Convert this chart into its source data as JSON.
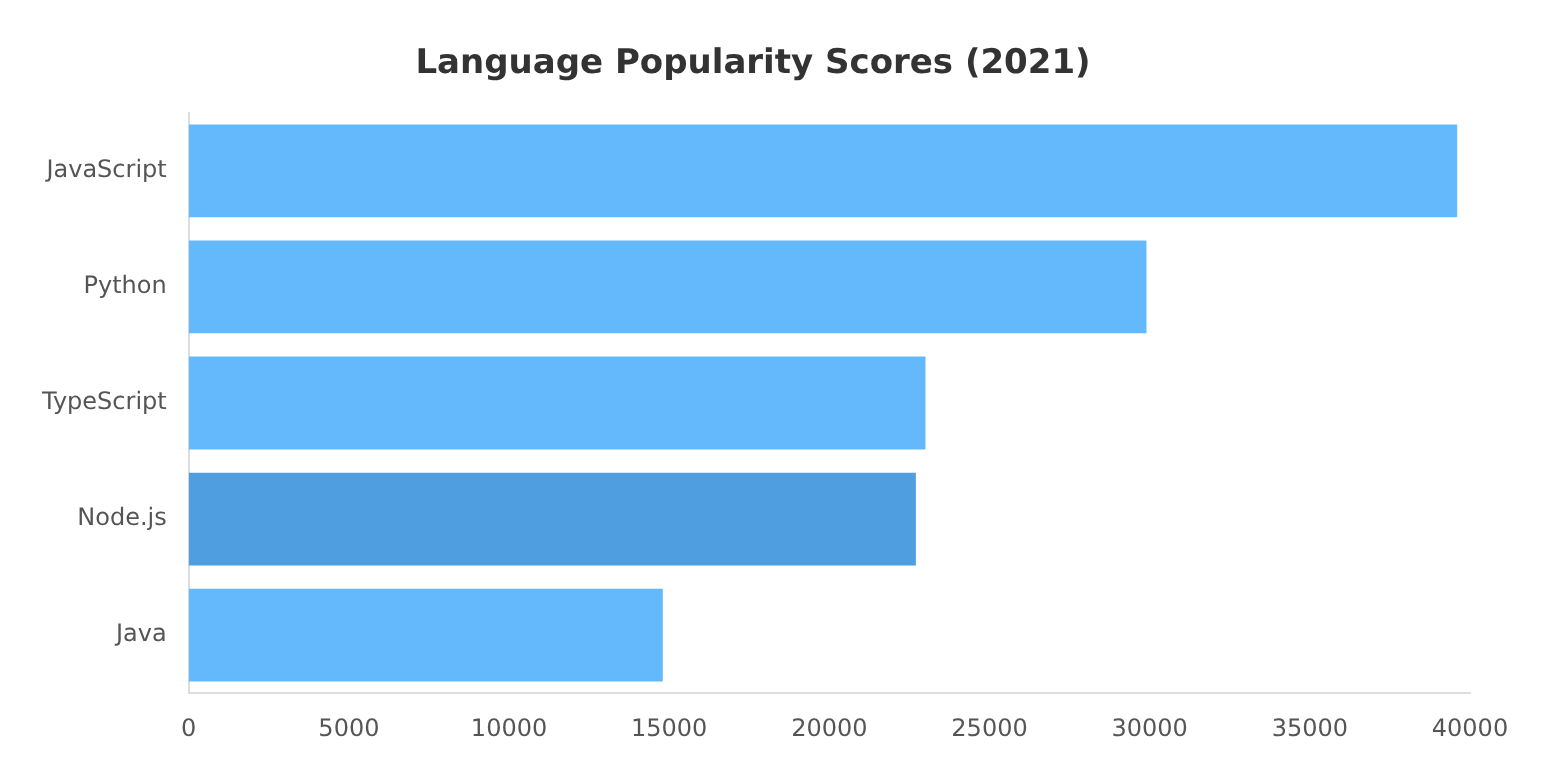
{
  "chart_data": {
    "type": "bar",
    "orientation": "horizontal",
    "title": "Language Popularity Scores (2021)",
    "categories": [
      "JavaScript",
      "Python",
      "TypeScript",
      "Node.js",
      "Java"
    ],
    "values": [
      39600,
      29900,
      23000,
      22700,
      14800
    ],
    "colors": [
      "#64b9fc",
      "#64b9fc",
      "#64b9fc",
      "#4e9ee0",
      "#64b9fc"
    ],
    "xlim": [
      0,
      40000
    ],
    "xticks": [
      0,
      5000,
      10000,
      15000,
      20000,
      25000,
      30000,
      35000,
      40000
    ],
    "grid": false,
    "legend": false
  }
}
